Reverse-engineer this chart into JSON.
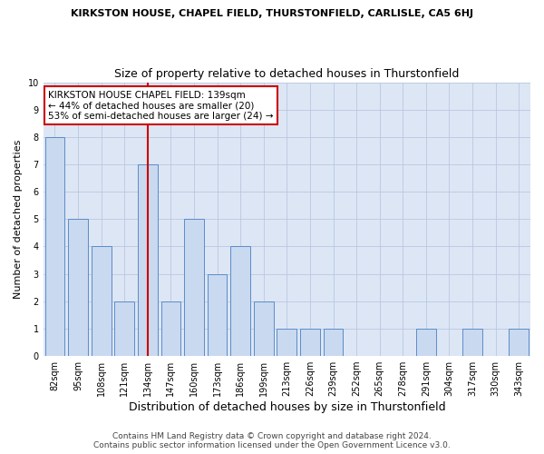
{
  "title": "KIRKSTON HOUSE, CHAPEL FIELD, THURSTONFIELD, CARLISLE, CA5 6HJ",
  "subtitle": "Size of property relative to detached houses in Thurstonfield",
  "xlabel": "Distribution of detached houses by size in Thurstonfield",
  "ylabel": "Number of detached properties",
  "categories": [
    "82sqm",
    "95sqm",
    "108sqm",
    "121sqm",
    "134sqm",
    "147sqm",
    "160sqm",
    "173sqm",
    "186sqm",
    "199sqm",
    "213sqm",
    "226sqm",
    "239sqm",
    "252sqm",
    "265sqm",
    "278sqm",
    "291sqm",
    "304sqm",
    "317sqm",
    "330sqm",
    "343sqm"
  ],
  "values": [
    8,
    5,
    4,
    2,
    7,
    2,
    5,
    3,
    4,
    2,
    1,
    1,
    1,
    0,
    0,
    0,
    1,
    0,
    1,
    0,
    1
  ],
  "bar_color": "#c9d9f0",
  "bar_edge_color": "#5b8cc8",
  "highlight_index": 4,
  "highlight_line_color": "#cc0000",
  "annotation_text": "KIRKSTON HOUSE CHAPEL FIELD: 139sqm\n← 44% of detached houses are smaller (20)\n53% of semi-detached houses are larger (24) →",
  "annotation_box_color": "#ffffff",
  "annotation_box_edge_color": "#cc0000",
  "ylim": [
    0,
    10
  ],
  "yticks": [
    0,
    1,
    2,
    3,
    4,
    5,
    6,
    7,
    8,
    9,
    10
  ],
  "footer_line1": "Contains HM Land Registry data © Crown copyright and database right 2024.",
  "footer_line2": "Contains public sector information licensed under the Open Government Licence v3.0.",
  "bg_color": "#ffffff",
  "plot_bg_color": "#dde6f5",
  "grid_color": "#b8c8e0",
  "title_fontsize": 8,
  "subtitle_fontsize": 9,
  "xlabel_fontsize": 9,
  "ylabel_fontsize": 8,
  "tick_fontsize": 7,
  "annotation_fontsize": 7.5,
  "footer_fontsize": 6.5
}
